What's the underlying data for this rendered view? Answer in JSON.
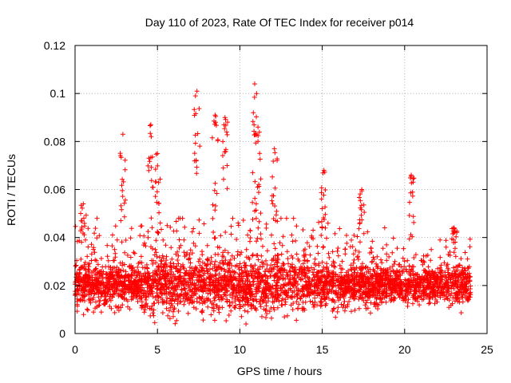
{
  "chart_data": {
    "type": "scatter",
    "title": "Day 110 of 2023, Rate Of TEC Index for receiver p014",
    "xlabel": "GPS time / hours",
    "ylabel": "ROTI / TECUs",
    "xlim": [
      0,
      25
    ],
    "ylim": [
      0,
      0.12
    ],
    "xticks": [
      0,
      5,
      10,
      15,
      20,
      25
    ],
    "yticks": [
      0,
      0.02,
      0.04,
      0.06,
      0.08,
      0.1,
      0.12
    ],
    "xtick_labels": [
      "0",
      "5",
      "10",
      "15",
      "20",
      "25"
    ],
    "ytick_labels": [
      "0",
      "0.02",
      "0.04",
      "0.06",
      "0.08",
      "0.1",
      "0.12"
    ],
    "grid": true,
    "marker": "+",
    "color": "#ff0000",
    "x_range": [
      0,
      24
    ],
    "baseline_band": [
      0.005,
      0.035
    ],
    "peaks": [
      {
        "x": 0.5,
        "y": 0.054
      },
      {
        "x": 2.9,
        "y": 0.083
      },
      {
        "x": 4.6,
        "y": 0.087
      },
      {
        "x": 5.0,
        "y": 0.075
      },
      {
        "x": 7.4,
        "y": 0.101
      },
      {
        "x": 8.5,
        "y": 0.091
      },
      {
        "x": 9.1,
        "y": 0.09
      },
      {
        "x": 10.9,
        "y": 0.104
      },
      {
        "x": 11.1,
        "y": 0.086
      },
      {
        "x": 12.1,
        "y": 0.077
      },
      {
        "x": 15.1,
        "y": 0.068
      },
      {
        "x": 17.4,
        "y": 0.06
      },
      {
        "x": 20.4,
        "y": 0.066
      },
      {
        "x": 23.0,
        "y": 0.044
      }
    ]
  }
}
